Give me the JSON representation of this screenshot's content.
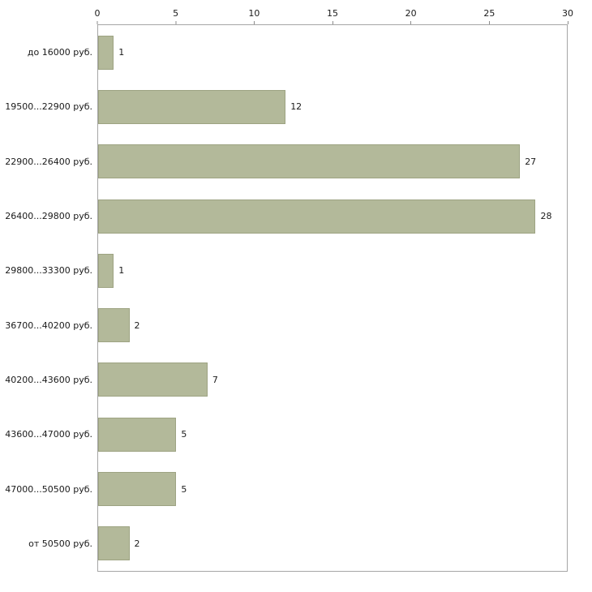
{
  "chart_data": {
    "type": "bar",
    "orientation": "horizontal",
    "title": "",
    "xlabel": "",
    "ylabel": "",
    "xlim": [
      0,
      30
    ],
    "x_ticks": [
      0,
      5,
      10,
      15,
      20,
      25,
      30
    ],
    "grid": false,
    "legend_position": "none",
    "categories": [
      "до 16000 руб.",
      "19500...22900 руб.",
      "22900...26400 руб.",
      "26400...29800 руб.",
      "29800...33300 руб.",
      "36700...40200 руб.",
      "40200...43600 руб.",
      "43600...47000 руб.",
      "47000...50500 руб.",
      "от 50500 руб."
    ],
    "values": [
      1,
      12,
      27,
      28,
      1,
      2,
      7,
      5,
      5,
      2
    ],
    "value_labels": [
      "1",
      "12",
      "27",
      "28",
      "1",
      "2",
      "7",
      "5",
      "5",
      "2"
    ],
    "colors": {
      "bar_fill": "#b3b99a",
      "bar_border": "#9da382",
      "axis_line": "#a6a6a6",
      "tick_mark": "#8c8c8c",
      "text": "#1a1a1a"
    }
  }
}
